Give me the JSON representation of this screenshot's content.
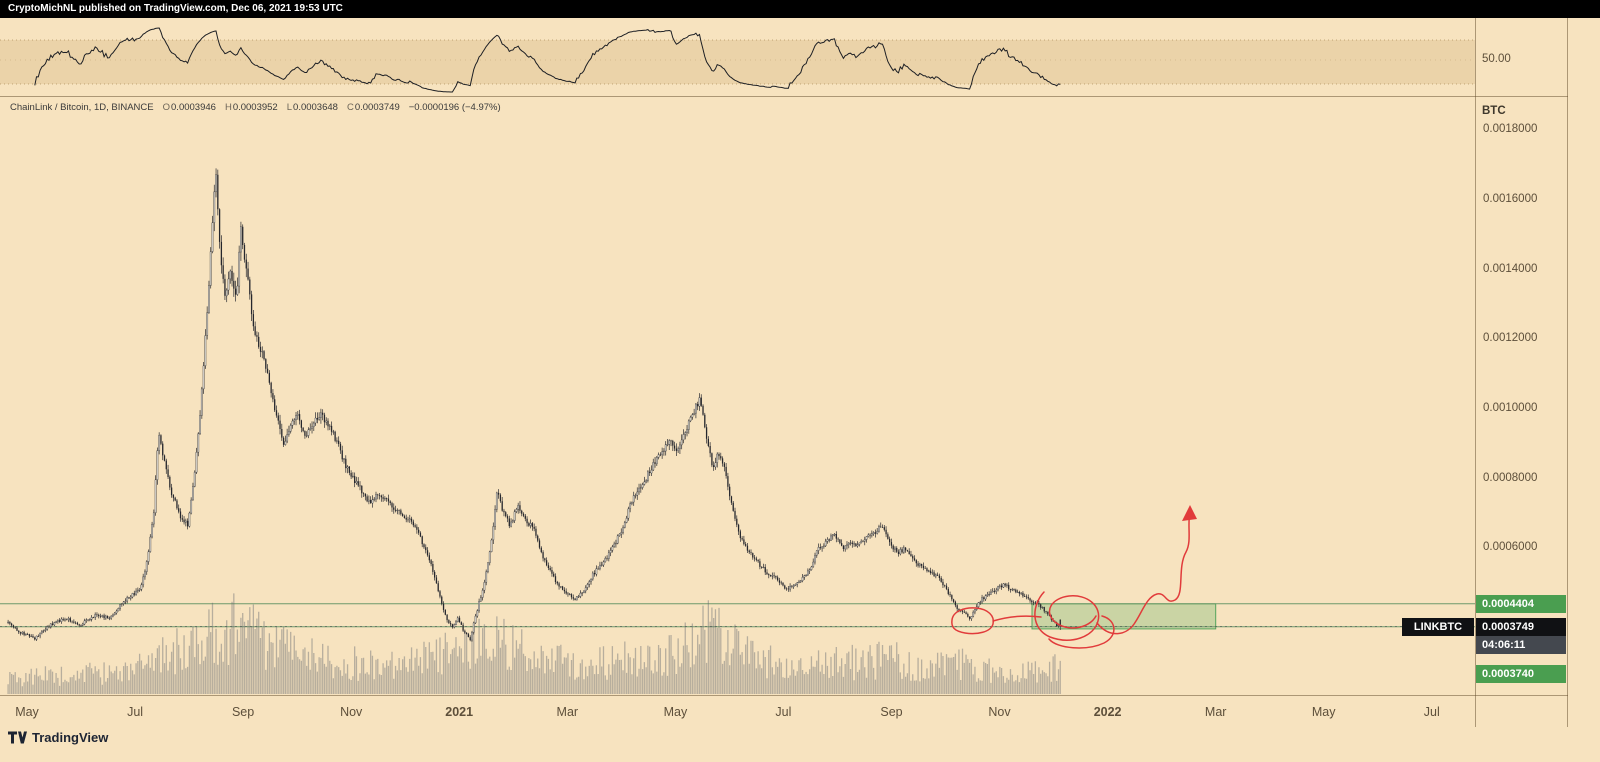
{
  "header": {
    "attribution": "CryptoMichNL published on TradingView.com, Dec 06, 2021 19:53 UTC"
  },
  "symbol_bar": {
    "title": "ChainLink / Bitcoin, 1D, BINANCE",
    "open_label": "O",
    "open": "0.0003946",
    "high_label": "H",
    "high": "0.0003952",
    "low_label": "L",
    "low": "0.0003648",
    "close_label": "C",
    "close": "0.0003749",
    "change": "−0.0000196 (−4.97%)"
  },
  "oscillator": {
    "right_label": "50.00"
  },
  "price_scale": {
    "currency": "BTC",
    "ticks": [
      {
        "v": 0.0018,
        "label": "0.0018000"
      },
      {
        "v": 0.0016,
        "label": "0.0016000"
      },
      {
        "v": 0.0014,
        "label": "0.0014000"
      },
      {
        "v": 0.0012,
        "label": "0.0012000"
      },
      {
        "v": 0.001,
        "label": "0.0010000"
      },
      {
        "v": 0.0008,
        "label": "0.0008000"
      },
      {
        "v": 0.0006,
        "label": "0.0006000"
      }
    ],
    "badges": {
      "zone_top": "0.0004404",
      "symbol_tag": "LINKBTC",
      "last_price": "0.0003749",
      "countdown": "04:06:11",
      "zone_bottom": "0.0003740"
    }
  },
  "time_scale": {
    "labels": [
      {
        "m": 0,
        "label": "May"
      },
      {
        "m": 2,
        "label": "Jul"
      },
      {
        "m": 4,
        "label": "Sep"
      },
      {
        "m": 6,
        "label": "Nov"
      },
      {
        "m": 8,
        "label": "2021"
      },
      {
        "m": 10,
        "label": "Mar"
      },
      {
        "m": 12,
        "label": "May"
      },
      {
        "m": 14,
        "label": "Jul"
      },
      {
        "m": 16,
        "label": "Sep"
      },
      {
        "m": 18,
        "label": "Nov"
      },
      {
        "m": 20,
        "label": "2022"
      },
      {
        "m": 22,
        "label": "Mar"
      },
      {
        "m": 24,
        "label": "May"
      },
      {
        "m": 26,
        "label": "Jul"
      }
    ]
  },
  "chart_data": {
    "type": "candlestick",
    "title": "ChainLink / Bitcoin",
    "symbol": "LINKBTC",
    "exchange": "BINANCE",
    "interval": "1D",
    "x_unit": "months since May 2020",
    "x_range": [
      -0.5,
      26.8
    ],
    "value_range": [
      0.000178,
      0.001899
    ],
    "last": {
      "open": 0.0003946,
      "high": 0.0003952,
      "low": 0.0003648,
      "close": 0.0003749,
      "change": -1.96e-05,
      "change_pct": -4.97
    },
    "levels": [
      0.0004404,
      0.000374
    ],
    "zone": {
      "from": 18.6,
      "to": 22.0,
      "top": 0.00044,
      "bottom": 0.000368
    },
    "indicator": {
      "type": "oscillator",
      "mid_label": "50.00"
    },
    "close_path": [
      [
        -0.35,
        0.000387
      ],
      [
        -0.13,
        0.000359
      ],
      [
        0.15,
        0.000341
      ],
      [
        0.43,
        0.000379
      ],
      [
        0.7,
        0.000399
      ],
      [
        0.98,
        0.000379
      ],
      [
        1.26,
        0.000408
      ],
      [
        1.54,
        0.000399
      ],
      [
        1.81,
        0.000451
      ],
      [
        2.09,
        0.000479
      ],
      [
        2.2,
        0.00054
      ],
      [
        2.35,
        0.0007
      ],
      [
        2.43,
        0.000939
      ],
      [
        2.52,
        0.000867
      ],
      [
        2.65,
        0.000767
      ],
      [
        2.83,
        0.000695
      ],
      [
        2.98,
        0.000666
      ],
      [
        3.11,
        0.000824
      ],
      [
        3.24,
        0.001054
      ],
      [
        3.35,
        0.001313
      ],
      [
        3.44,
        0.001571
      ],
      [
        3.5,
        0.001672
      ],
      [
        3.57,
        0.001456
      ],
      [
        3.67,
        0.001313
      ],
      [
        3.76,
        0.001385
      ],
      [
        3.87,
        0.001313
      ],
      [
        3.96,
        0.001514
      ],
      [
        4.06,
        0.001405
      ],
      [
        4.17,
        0.001255
      ],
      [
        4.28,
        0.001183
      ],
      [
        4.39,
        0.001155
      ],
      [
        4.5,
        0.001054
      ],
      [
        4.63,
        0.000968
      ],
      [
        4.76,
        0.000896
      ],
      [
        4.87,
        0.000953
      ],
      [
        5.0,
        0.000982
      ],
      [
        5.15,
        0.000925
      ],
      [
        5.28,
        0.000953
      ],
      [
        5.43,
        0.000991
      ],
      [
        5.57,
        0.000953
      ],
      [
        5.72,
        0.00091
      ],
      [
        5.87,
        0.000847
      ],
      [
        6.02,
        0.000801
      ],
      [
        6.17,
        0.000772
      ],
      [
        6.31,
        0.000729
      ],
      [
        6.46,
        0.000752
      ],
      [
        6.63,
        0.000744
      ],
      [
        6.8,
        0.000709
      ],
      [
        6.96,
        0.000695
      ],
      [
        7.13,
        0.000675
      ],
      [
        7.3,
        0.000623
      ],
      [
        7.46,
        0.000566
      ],
      [
        7.61,
        0.000474
      ],
      [
        7.76,
        0.000399
      ],
      [
        7.87,
        0.00037
      ],
      [
        7.98,
        0.000399
      ],
      [
        8.09,
        0.000359
      ],
      [
        8.2,
        0.000336
      ],
      [
        8.33,
        0.000422
      ],
      [
        8.46,
        0.000494
      ],
      [
        8.59,
        0.000609
      ],
      [
        8.7,
        0.000767
      ],
      [
        8.81,
        0.000703
      ],
      [
        8.94,
        0.000666
      ],
      [
        9.09,
        0.000724
      ],
      [
        9.24,
        0.000681
      ],
      [
        9.39,
        0.000652
      ],
      [
        9.54,
        0.00058
      ],
      [
        9.69,
        0.000531
      ],
      [
        9.83,
        0.000494
      ],
      [
        9.98,
        0.000474
      ],
      [
        10.13,
        0.000451
      ],
      [
        10.28,
        0.000474
      ],
      [
        10.43,
        0.000514
      ],
      [
        10.57,
        0.000543
      ],
      [
        10.72,
        0.000571
      ],
      [
        10.87,
        0.000609
      ],
      [
        11.02,
        0.000657
      ],
      [
        11.17,
        0.000724
      ],
      [
        11.31,
        0.000772
      ],
      [
        11.46,
        0.000801
      ],
      [
        11.61,
        0.000847
      ],
      [
        11.76,
        0.000876
      ],
      [
        11.91,
        0.00091
      ],
      [
        12.06,
        0.000876
      ],
      [
        12.2,
        0.000945
      ],
      [
        12.35,
        0.000997
      ],
      [
        12.46,
        0.001025
      ],
      [
        12.57,
        0.000916
      ],
      [
        12.69,
        0.00083
      ],
      [
        12.8,
        0.000876
      ],
      [
        12.91,
        0.000839
      ],
      [
        13.04,
        0.000724
      ],
      [
        13.17,
        0.000646
      ],
      [
        13.31,
        0.0006
      ],
      [
        13.46,
        0.000571
      ],
      [
        13.61,
        0.000543
      ],
      [
        13.76,
        0.000522
      ],
      [
        13.91,
        0.000508
      ],
      [
        14.06,
        0.000479
      ],
      [
        14.2,
        0.000494
      ],
      [
        14.35,
        0.000514
      ],
      [
        14.5,
        0.000543
      ],
      [
        14.65,
        0.0006
      ],
      [
        14.8,
        0.000617
      ],
      [
        14.94,
        0.000646
      ],
      [
        15.09,
        0.0006
      ],
      [
        15.24,
        0.000617
      ],
      [
        15.39,
        0.000609
      ],
      [
        15.54,
        0.000629
      ],
      [
        15.69,
        0.000646
      ],
      [
        15.83,
        0.000666
      ],
      [
        15.98,
        0.000609
      ],
      [
        16.13,
        0.000589
      ],
      [
        16.28,
        0.0006
      ],
      [
        16.43,
        0.00056
      ],
      [
        16.57,
        0.000543
      ],
      [
        16.72,
        0.000531
      ],
      [
        16.87,
        0.000514
      ],
      [
        17.02,
        0.000479
      ],
      [
        17.17,
        0.000436
      ],
      [
        17.31,
        0.000416
      ],
      [
        17.46,
        0.000399
      ],
      [
        17.61,
        0.000445
      ],
      [
        17.76,
        0.000465
      ],
      [
        17.91,
        0.000479
      ],
      [
        18.06,
        0.000494
      ],
      [
        18.2,
        0.000485
      ],
      [
        18.35,
        0.000474
      ],
      [
        18.5,
        0.000456
      ],
      [
        18.65,
        0.000445
      ],
      [
        18.8,
        0.000428
      ],
      [
        18.94,
        0.000399
      ],
      [
        19.06,
        0.000379
      ],
      [
        19.13,
        0.0003749
      ]
    ],
    "volume_profile": [
      [
        -0.35,
        22
      ],
      [
        0.5,
        26
      ],
      [
        1.5,
        30
      ],
      [
        2.3,
        50
      ],
      [
        2.6,
        62
      ],
      [
        3.0,
        58
      ],
      [
        3.4,
        88
      ],
      [
        3.6,
        96
      ],
      [
        4.0,
        92
      ],
      [
        4.4,
        70
      ],
      [
        5.0,
        56
      ],
      [
        5.6,
        48
      ],
      [
        6.3,
        42
      ],
      [
        7.0,
        40
      ],
      [
        7.6,
        55
      ],
      [
        7.9,
        68
      ],
      [
        8.2,
        62
      ],
      [
        8.6,
        80
      ],
      [
        8.8,
        72
      ],
      [
        9.3,
        55
      ],
      [
        10.0,
        46
      ],
      [
        10.8,
        44
      ],
      [
        11.5,
        55
      ],
      [
        12.1,
        62
      ],
      [
        12.5,
        85
      ],
      [
        12.7,
        92
      ],
      [
        13.1,
        64
      ],
      [
        13.6,
        46
      ],
      [
        14.2,
        40
      ],
      [
        14.9,
        44
      ],
      [
        15.5,
        46
      ],
      [
        16.0,
        50
      ],
      [
        16.6,
        36
      ],
      [
        17.2,
        44
      ],
      [
        17.7,
        36
      ],
      [
        18.2,
        30
      ],
      [
        18.7,
        34
      ],
      [
        19.13,
        38
      ]
    ]
  },
  "annotation": {
    "color": "#e13b3b",
    "paths": [
      "M 952 620 C 953 611 965 607 976 608 C 988 609 995 616 993 624 C 991 632 977 635 965 633 C 954 631 951 627 952 620",
      "M 993 621 Q 1016 614 1041 617",
      "M 1044 592 C 1031 606 1031 629 1050 637 C 1071 645 1094 637 1098 621 C 1102 606 1087 594 1069 596 C 1052 598 1043 611 1055 622 C 1067 632 1089 629 1096 616",
      "M 1049 639 C 1057 649 1087 651 1104 643 C 1118 636 1117 620 1102 616",
      "M 1097 623 C 1109 638 1127 637 1136 621 C 1143 610 1147 597 1157 594 C 1166 592 1166 605 1175 600 C 1185 594 1177 568 1186 552 C 1192 541 1187 526 1190 512"
    ],
    "arrowhead": "1190,505 1182,521 1197,519"
  },
  "watermark": {
    "brand": "TradingView"
  },
  "colors": {
    "background": "#f7e3bf",
    "topbar_bg": "#000000",
    "topbar_text": "#ffffff",
    "osc_band": "rgba(166,120,44,0.15)",
    "band_edge": "rgba(130,95,40,0.45)",
    "candle_dark": "#26272d",
    "candle_light": "#ece8df",
    "wick": "#2b2c32",
    "volume": "rgba(95,99,110,0.42)",
    "rsi_line": "#1d1f24",
    "level_line": "#6f9a6b",
    "zone_fill": "rgba(99,180,104,0.30)",
    "zone_border": "#55a45c",
    "badge_green": "#4a9e50",
    "badge_black": "#101114",
    "badge_gray": "#44484f",
    "axis_text": "#5d4f3a",
    "separator": "rgba(98,76,44,0.5)",
    "legend_text": "#3a3a3a",
    "current_price_line": "#45474d",
    "logo": "#1d2433"
  }
}
